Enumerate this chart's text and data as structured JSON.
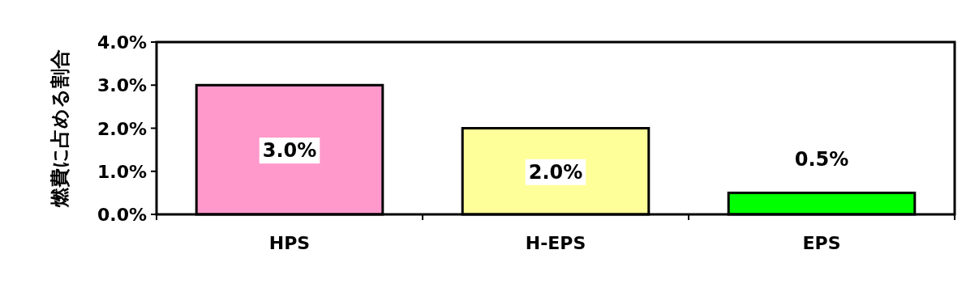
{
  "chart_data": {
    "type": "bar",
    "ylabel": "燃費に占める割合",
    "categories": [
      "HPS",
      "H-EPS",
      "EPS"
    ],
    "values": [
      3.0,
      2.0,
      0.5
    ],
    "colors": [
      "#ff99cc",
      "#ffff99",
      "#00ff00"
    ],
    "value_labels": [
      "3.0%",
      "2.0%",
      "0.5%"
    ],
    "ylim": [
      0,
      4
    ],
    "yticks": [
      {
        "value": 0,
        "label": "0.0%"
      },
      {
        "value": 1,
        "label": "1.0%"
      },
      {
        "value": 2,
        "label": "2.0%"
      },
      {
        "value": 3,
        "label": "3.0%"
      },
      {
        "value": 4,
        "label": "4.0%"
      }
    ],
    "grid": false
  }
}
